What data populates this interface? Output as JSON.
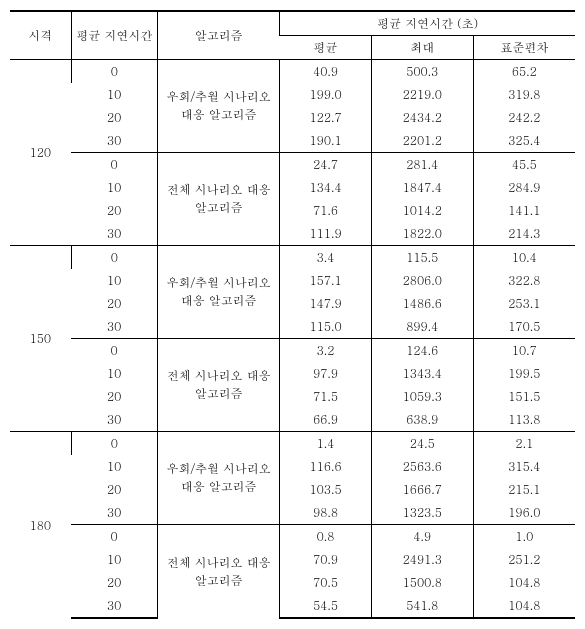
{
  "headers": {
    "time": "시격",
    "avgDelayLabel": "평균 지연시간",
    "algo": "알고리즘",
    "delayGroup": "평균 지연시간 (초)",
    "avg": "평균",
    "max": "최대",
    "std": "표준편차"
  },
  "algoNames": {
    "detour": [
      "우회/추월 시나리오",
      "대응 알고리즘"
    ],
    "full": [
      "전체 시나리오 대응",
      "알고리즘"
    ]
  },
  "groups": [
    {
      "time": "120",
      "blocks": [
        {
          "algoKey": "detour",
          "rows": [
            {
              "d": "0",
              "avg": "40.9",
              "max": "500.3",
              "std": "65.2"
            },
            {
              "d": "10",
              "avg": "199.0",
              "max": "2219.0",
              "std": "319.8"
            },
            {
              "d": "20",
              "avg": "122.7",
              "max": "2434.2",
              "std": "242.2"
            },
            {
              "d": "30",
              "avg": "190.1",
              "max": "2201.2",
              "std": "325.4"
            }
          ]
        },
        {
          "algoKey": "full",
          "rows": [
            {
              "d": "0",
              "avg": "24.7",
              "max": "281.4",
              "std": "45.5"
            },
            {
              "d": "10",
              "avg": "134.4",
              "max": "1847.4",
              "std": "284.9"
            },
            {
              "d": "20",
              "avg": "71.6",
              "max": "1014.2",
              "std": "141.1"
            },
            {
              "d": "30",
              "avg": "111.9",
              "max": "1822.0",
              "std": "214.3"
            }
          ]
        }
      ]
    },
    {
      "time": "150",
      "blocks": [
        {
          "algoKey": "detour",
          "rows": [
            {
              "d": "0",
              "avg": "3.4",
              "max": "115.5",
              "std": "10.4"
            },
            {
              "d": "10",
              "avg": "157.1",
              "max": "2806.0",
              "std": "322.8"
            },
            {
              "d": "20",
              "avg": "147.9",
              "max": "1486.6",
              "std": "253.1"
            },
            {
              "d": "30",
              "avg": "115.0",
              "max": "899.4",
              "std": "170.5"
            }
          ]
        },
        {
          "algoKey": "full",
          "rows": [
            {
              "d": "0",
              "avg": "3.2",
              "max": "124.6",
              "std": "10.7"
            },
            {
              "d": "10",
              "avg": "97.9",
              "max": "1343.4",
              "std": "199.5"
            },
            {
              "d": "20",
              "avg": "71.5",
              "max": "1059.3",
              "std": "151.5"
            },
            {
              "d": "30",
              "avg": "66.9",
              "max": "638.9",
              "std": "113.8"
            }
          ]
        }
      ]
    },
    {
      "time": "180",
      "blocks": [
        {
          "algoKey": "detour",
          "rows": [
            {
              "d": "0",
              "avg": "1.4",
              "max": "24.5",
              "std": "2.1"
            },
            {
              "d": "10",
              "avg": "116.6",
              "max": "2563.6",
              "std": "315.4"
            },
            {
              "d": "20",
              "avg": "103.5",
              "max": "1666.7",
              "std": "215.1"
            },
            {
              "d": "30",
              "avg": "98.8",
              "max": "1323.5",
              "std": "196.0"
            }
          ]
        },
        {
          "algoKey": "full",
          "rows": [
            {
              "d": "0",
              "avg": "0.8",
              "max": "4.9",
              "std": "1.0"
            },
            {
              "d": "10",
              "avg": "70.9",
              "max": "2491.3",
              "std": "251.2"
            },
            {
              "d": "20",
              "avg": "70.5",
              "max": "1500.8",
              "std": "104.8"
            },
            {
              "d": "30",
              "avg": "54.5",
              "max": "541.8",
              "std": "104.8"
            }
          ]
        }
      ]
    }
  ]
}
